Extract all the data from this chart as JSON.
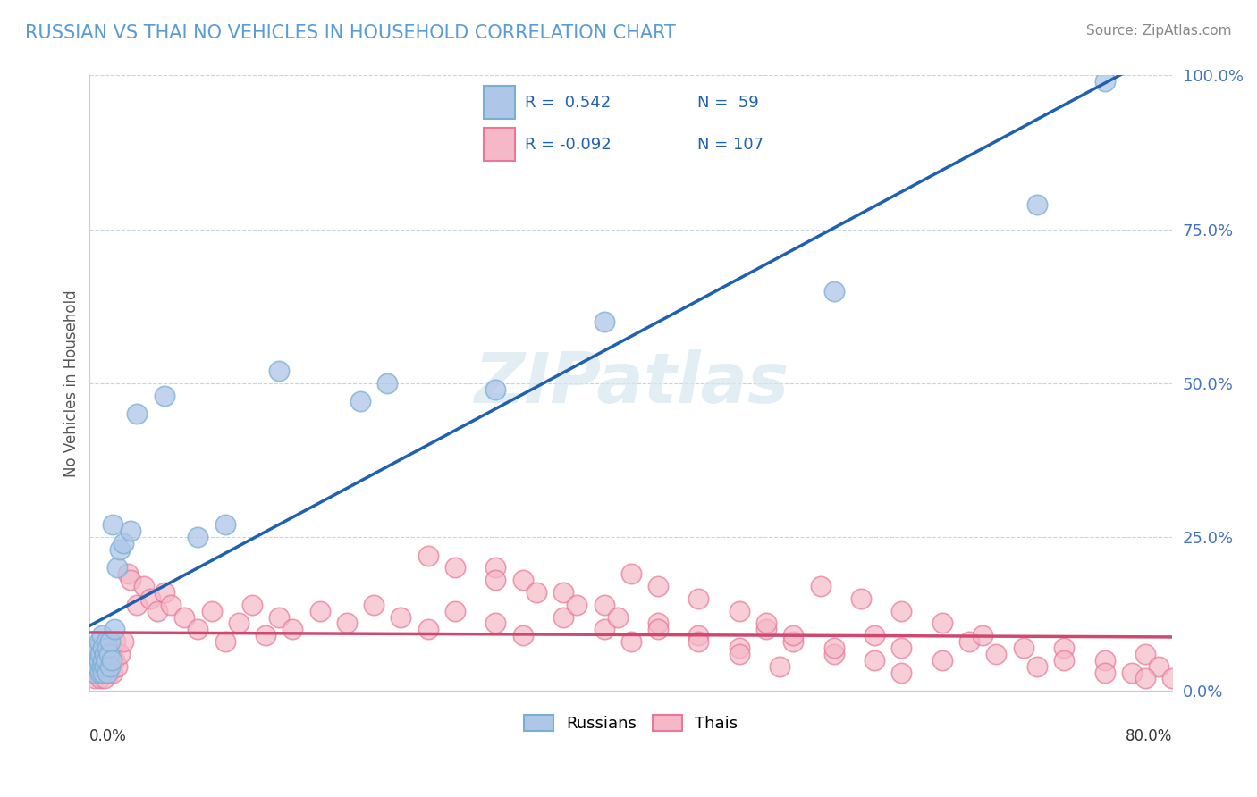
{
  "title": "RUSSIAN VS THAI NO VEHICLES IN HOUSEHOLD CORRELATION CHART",
  "source": "Source: ZipAtlas.com",
  "ylabel": "No Vehicles in Household",
  "ytick_vals": [
    0,
    25,
    50,
    75,
    100
  ],
  "ytick_labels": [
    "0.0%",
    "25.0%",
    "50.0%",
    "75.0%",
    "100.0%"
  ],
  "xmin": 0,
  "xmax": 80,
  "ymin": 0,
  "ymax": 100,
  "blue_face": "#aec6e8",
  "blue_edge": "#7aafd4",
  "pink_face": "#f5b8c8",
  "pink_edge": "#e87898",
  "blue_line_color": "#2060b0",
  "pink_line_color": "#d04870",
  "title_color": "#5b9bd5",
  "legend_r_color": "#2060b0",
  "source_color": "#888888",
  "watermark_color": "#d8e8f0",
  "watermark_text": "ZIPatlas",
  "grid_color": "#c0d0e0",
  "russians_x": [
    0.2,
    0.3,
    0.4,
    0.5,
    0.5,
    0.6,
    0.7,
    0.7,
    0.8,
    0.8,
    0.9,
    0.9,
    1.0,
    1.0,
    1.0,
    1.1,
    1.1,
    1.2,
    1.2,
    1.3,
    1.3,
    1.4,
    1.5,
    1.5,
    1.6,
    1.7,
    1.8,
    2.0,
    2.2,
    2.5,
    3.0,
    3.5,
    5.5,
    8.0,
    10.0,
    14.0,
    20.0,
    22.0,
    30.0,
    38.0,
    55.0,
    70.0,
    75.0
  ],
  "russians_y": [
    4.0,
    6.0,
    3.0,
    5.0,
    7.0,
    4.0,
    8.0,
    5.0,
    3.0,
    6.0,
    4.0,
    9.0,
    5.0,
    7.0,
    3.0,
    6.0,
    4.0,
    8.0,
    5.0,
    7.0,
    3.0,
    6.0,
    4.0,
    8.0,
    5.0,
    27.0,
    10.0,
    20.0,
    23.0,
    24.0,
    26.0,
    45.0,
    48.0,
    25.0,
    27.0,
    52.0,
    47.0,
    50.0,
    49.0,
    60.0,
    65.0,
    79.0,
    99.0
  ],
  "thais_x": [
    0.2,
    0.3,
    0.4,
    0.5,
    0.5,
    0.6,
    0.7,
    0.7,
    0.8,
    0.8,
    0.9,
    0.9,
    1.0,
    1.0,
    1.1,
    1.1,
    1.2,
    1.2,
    1.3,
    1.4,
    1.5,
    1.5,
    1.6,
    1.7,
    1.8,
    1.9,
    2.0,
    2.2,
    2.5,
    2.8,
    3.0,
    3.5,
    4.0,
    4.5,
    5.0,
    5.5,
    6.0,
    7.0,
    8.0,
    9.0,
    10.0,
    11.0,
    12.0,
    13.0,
    14.0,
    15.0,
    17.0,
    19.0,
    21.0,
    23.0,
    25.0,
    27.0,
    30.0,
    32.0,
    35.0,
    38.0,
    40.0,
    42.0,
    45.0,
    48.0,
    50.0,
    52.0,
    55.0,
    58.0,
    60.0,
    63.0,
    65.0,
    67.0,
    70.0,
    72.0,
    75.0,
    77.0,
    78.0,
    79.0,
    80.0,
    30.0,
    32.0,
    35.0,
    38.0,
    40.0,
    42.0,
    45.0,
    48.0,
    50.0,
    52.0,
    55.0,
    58.0,
    60.0,
    25.0,
    27.0,
    30.0,
    33.0,
    36.0,
    39.0,
    42.0,
    45.0,
    48.0,
    51.0,
    54.0,
    57.0,
    60.0,
    63.0,
    66.0,
    69.0,
    72.0,
    75.0,
    78.0
  ],
  "thais_y": [
    3.0,
    5.0,
    2.0,
    4.0,
    6.0,
    3.0,
    5.0,
    7.0,
    2.0,
    4.0,
    6.0,
    3.0,
    5.0,
    7.0,
    2.0,
    4.0,
    6.0,
    8.0,
    5.0,
    3.0,
    7.0,
    4.0,
    6.0,
    3.0,
    5.0,
    8.0,
    4.0,
    6.0,
    8.0,
    19.0,
    18.0,
    14.0,
    17.0,
    15.0,
    13.0,
    16.0,
    14.0,
    12.0,
    10.0,
    13.0,
    8.0,
    11.0,
    14.0,
    9.0,
    12.0,
    10.0,
    13.0,
    11.0,
    14.0,
    12.0,
    10.0,
    13.0,
    11.0,
    9.0,
    12.0,
    10.0,
    8.0,
    11.0,
    9.0,
    7.0,
    10.0,
    8.0,
    6.0,
    9.0,
    7.0,
    5.0,
    8.0,
    6.0,
    4.0,
    7.0,
    5.0,
    3.0,
    6.0,
    4.0,
    2.0,
    20.0,
    18.0,
    16.0,
    14.0,
    19.0,
    17.0,
    15.0,
    13.0,
    11.0,
    9.0,
    7.0,
    5.0,
    3.0,
    22.0,
    20.0,
    18.0,
    16.0,
    14.0,
    12.0,
    10.0,
    8.0,
    6.0,
    4.0,
    17.0,
    15.0,
    13.0,
    11.0,
    9.0,
    7.0,
    5.0,
    3.0,
    2.0
  ]
}
